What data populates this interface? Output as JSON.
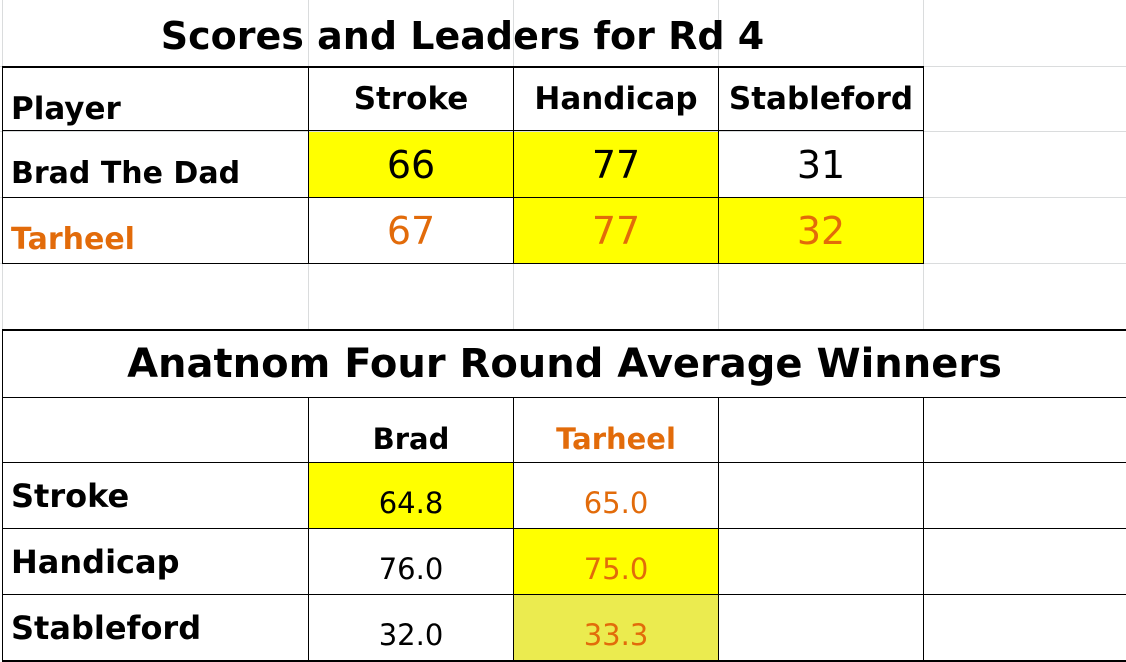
{
  "colors": {
    "highlight": "#ffff00",
    "highlight_pale": "#ebeb4f",
    "tarheel": "#e26b0a",
    "text": "#000000",
    "gridline": "#dadcdd"
  },
  "round_table": {
    "title": "Scores and Leaders for Rd 4",
    "headers": [
      "Player",
      "Stroke",
      "Handicap",
      "Stableford"
    ],
    "rows": [
      {
        "player": "Brad The Dad",
        "stroke": "66",
        "handicap": "77",
        "stableford": "31",
        "highlighted": [
          "stroke",
          "handicap"
        ]
      },
      {
        "player": "Tarheel",
        "stroke": "67",
        "handicap": "77",
        "stableford": "32",
        "highlighted": [
          "handicap",
          "stableford"
        ]
      }
    ]
  },
  "average_table": {
    "title": "Anatnom Four Round Average Winners",
    "columns": [
      "Brad",
      "Tarheel"
    ],
    "rows": [
      {
        "label": "Stroke",
        "brad": "64.8",
        "tarheel": "65.0",
        "winner": "Brad"
      },
      {
        "label": "Handicap",
        "brad": "76.0",
        "tarheel": "75.0",
        "winner": "Tarheel"
      },
      {
        "label": "Stableford",
        "brad": "32.0",
        "tarheel": "33.3",
        "winner": "Tarheel"
      }
    ]
  }
}
